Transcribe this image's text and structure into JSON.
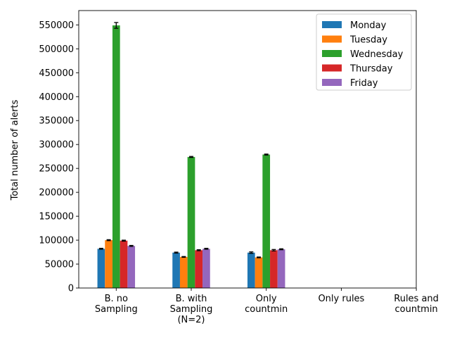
{
  "chart_data": {
    "type": "bar",
    "title": "",
    "xlabel": "",
    "ylabel": "Total number of alerts",
    "categories": [
      [
        "B. no",
        "Sampling"
      ],
      [
        "B. with",
        "Sampling",
        "(N=2)"
      ],
      [
        "Only",
        "countmin"
      ],
      [
        "Only rules"
      ],
      [
        "Rules and",
        "countmin"
      ]
    ],
    "series": [
      {
        "name": "Monday",
        "color": "#1f77b4",
        "values": [
          82000,
          74000,
          74000,
          null,
          null
        ],
        "errors": [
          1000,
          1000,
          1500,
          null,
          null
        ]
      },
      {
        "name": "Tuesday",
        "color": "#ff7f0e",
        "values": [
          100000,
          65000,
          64000,
          null,
          null
        ],
        "errors": [
          1000,
          800,
          800,
          null,
          null
        ]
      },
      {
        "name": "Wednesday",
        "color": "#2ca02c",
        "values": [
          549000,
          274000,
          279000,
          null,
          null
        ],
        "errors": [
          6000,
          1000,
          1000,
          null,
          null
        ]
      },
      {
        "name": "Thursday",
        "color": "#d62728",
        "values": [
          99000,
          79000,
          79000,
          null,
          null
        ],
        "errors": [
          1000,
          1000,
          1500,
          null,
          null
        ]
      },
      {
        "name": "Friday",
        "color": "#9467bd",
        "values": [
          88000,
          82000,
          81000,
          null,
          null
        ],
        "errors": [
          1000,
          1000,
          1000,
          null,
          null
        ]
      }
    ],
    "ylim": [
      0,
      580000
    ],
    "yticks": [
      0,
      50000,
      100000,
      150000,
      200000,
      250000,
      300000,
      350000,
      400000,
      450000,
      500000,
      550000
    ],
    "legend_position": "top-right",
    "grid": false
  }
}
